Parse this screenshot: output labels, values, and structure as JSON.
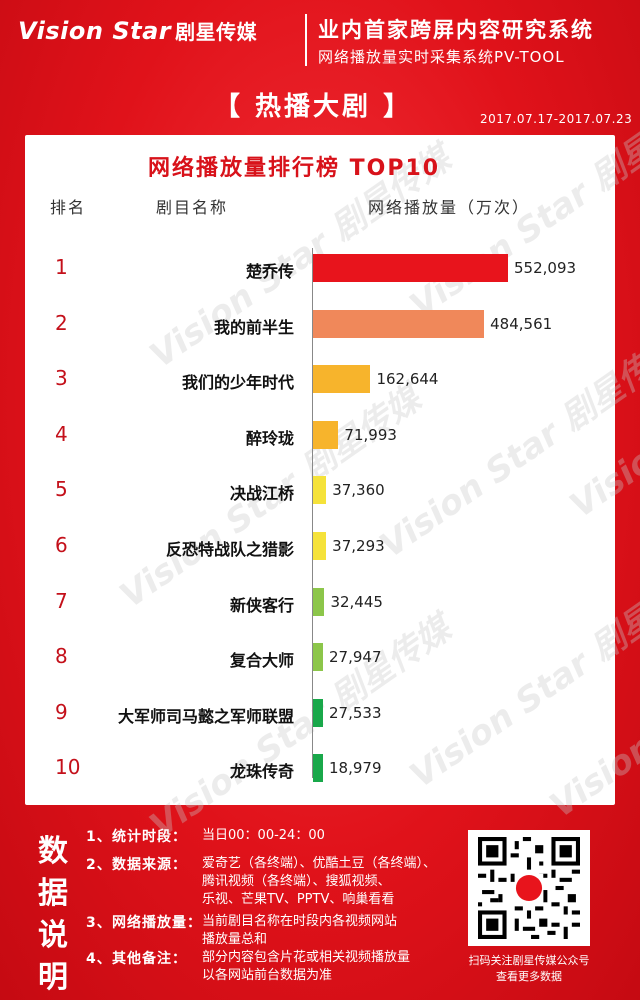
{
  "header": {
    "logo_text": "Vision Star",
    "logo_cn": "剧星传媒",
    "title": "业内首家跨屏内容研究系统",
    "subtitle": "网络播放量实时采集系统PV-TOOL"
  },
  "section": {
    "title": "【 热播大剧 】",
    "date_range": "2017.07.17-2017.07.23"
  },
  "chart_data": {
    "type": "bar",
    "orientation": "horizontal",
    "title": "网络播放量排行榜 TOP10",
    "columns": [
      "排名",
      "剧目名称",
      "网络播放量（万次）"
    ],
    "ranks": [
      "1",
      "2",
      "3",
      "4",
      "5",
      "6",
      "7",
      "8",
      "9",
      "10"
    ],
    "categories": [
      "楚乔传",
      "我的前半生",
      "我们的少年时代",
      "醉玲珑",
      "决战江桥",
      "反恐特战队之猎影",
      "新侠客行",
      "复合大师",
      "大军师司马懿之军师联盟",
      "龙珠传奇"
    ],
    "values": [
      552093,
      484561,
      162644,
      71993,
      37360,
      37293,
      32445,
      27947,
      27533,
      18979
    ],
    "value_labels": [
      "552,093",
      "484,561",
      "162,644",
      "71,993",
      "37,360",
      "37,293",
      "32,445",
      "27,947",
      "27,533",
      "18,979"
    ],
    "bar_colors": [
      "#e8141c",
      "#f0885a",
      "#f7b42c",
      "#f7b42c",
      "#f5e23a",
      "#f5e23a",
      "#8cc64a",
      "#8cc64a",
      "#19a84a",
      "#19a84a"
    ],
    "xlim": [
      0,
      552093
    ]
  },
  "info": {
    "title_chars": [
      "数",
      "据",
      "说",
      "明"
    ],
    "items": [
      {
        "num": "1、",
        "label": "统计时段：",
        "lines": [
          "当日00：00-24：00"
        ]
      },
      {
        "num": "2、",
        "label": "数据来源：",
        "lines": [
          "爱奇艺（各终端）、优酷土豆（各终端）、",
          "腾讯视频（各终端）、搜狐视频、",
          "乐视、芒果TV、PPTV、响巢看看"
        ]
      },
      {
        "num": "3、",
        "label": "网络播放量：",
        "lines": [
          "当前剧目名称在时段内各视频网站",
          "播放量总和"
        ]
      },
      {
        "num": "4、",
        "label": "其他备注：",
        "lines": [
          "部分内容包含片花或相关视频播放量",
          "以各网站前台数据为准"
        ]
      }
    ],
    "qr_caption": [
      "扫码关注剧星传媒公众号",
      "查看更多数据"
    ]
  },
  "watermark": "Vision Star 剧星传媒"
}
